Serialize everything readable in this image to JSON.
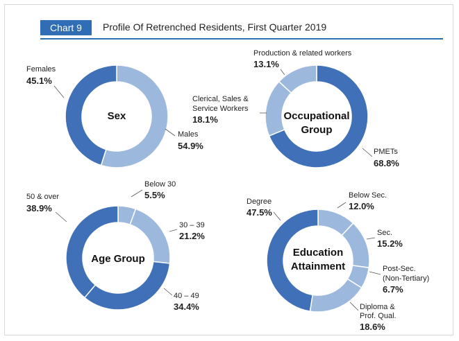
{
  "header": {
    "badge": "Chart 9",
    "title": "Profile Of Retrenched Residents, First Quarter 2019"
  },
  "colors": {
    "dark": "#3f70b8",
    "light": "#9cb8dd",
    "rule": "#2f6db5"
  },
  "chart_data": [
    {
      "type": "pie",
      "title": "Sex",
      "slices": [
        {
          "label": "Males",
          "value": 54.9,
          "display": "54.9%"
        },
        {
          "label": "Females",
          "value": 45.1,
          "display": "45.1%"
        }
      ]
    },
    {
      "type": "pie",
      "title": "Occupational Group",
      "slices": [
        {
          "label": "PMETs",
          "value": 68.8,
          "display": "68.8%"
        },
        {
          "label": "Clerical, Sales & Service Workers",
          "value": 18.1,
          "display": "18.1%"
        },
        {
          "label": "Production & related workers",
          "value": 13.1,
          "display": "13.1%"
        }
      ]
    },
    {
      "type": "pie",
      "title": "Age Group",
      "slices": [
        {
          "label": "Below 30",
          "value": 5.5,
          "display": "5.5%"
        },
        {
          "label": "30 – 39",
          "value": 21.2,
          "display": "21.2%"
        },
        {
          "label": "40 – 49",
          "value": 34.4,
          "display": "34.4%"
        },
        {
          "label": "50 & over",
          "value": 38.9,
          "display": "38.9%"
        }
      ]
    },
    {
      "type": "pie",
      "title": "Education Attainment",
      "slices": [
        {
          "label": "Below Sec.",
          "value": 12.0,
          "display": "12.0%"
        },
        {
          "label": "Sec.",
          "value": 15.2,
          "display": "15.2%"
        },
        {
          "label": "Post-Sec. (Non-Tertiary)",
          "value": 6.7,
          "display": "6.7%"
        },
        {
          "label": "Diploma & Prof. Qual.",
          "value": 18.6,
          "display": "18.6%"
        },
        {
          "label": "Degree",
          "value": 47.5,
          "display": "47.5%"
        }
      ]
    }
  ]
}
